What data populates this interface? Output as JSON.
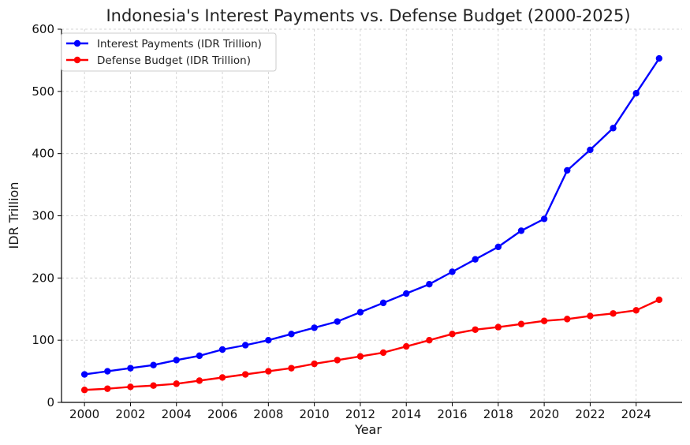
{
  "chart_data": {
    "type": "line",
    "title": "Indonesia's Interest Payments vs. Defense Budget (2000-2025)",
    "xlabel": "Year",
    "ylabel": "IDR Trillion",
    "xlim": [
      1999,
      2026
    ],
    "ylim": [
      0,
      600
    ],
    "xticks": [
      2000,
      2002,
      2004,
      2006,
      2008,
      2010,
      2012,
      2014,
      2016,
      2018,
      2020,
      2022,
      2024
    ],
    "yticks": [
      0,
      100,
      200,
      300,
      400,
      500,
      600
    ],
    "grid": true,
    "legend_position": "top-left",
    "x": [
      2000,
      2001,
      2002,
      2003,
      2004,
      2005,
      2006,
      2007,
      2008,
      2009,
      2010,
      2011,
      2012,
      2013,
      2014,
      2015,
      2016,
      2017,
      2018,
      2019,
      2020,
      2021,
      2022,
      2023,
      2024,
      2025
    ],
    "series": [
      {
        "name": "Interest Payments (IDR Trillion)",
        "color": "#0000ff",
        "values": [
          45,
          50,
          55,
          60,
          68,
          75,
          85,
          92,
          100,
          110,
          120,
          130,
          145,
          160,
          175,
          190,
          210,
          230,
          250,
          276,
          295,
          373,
          406,
          441,
          497,
          553
        ]
      },
      {
        "name": "Defense Budget (IDR Trillion)",
        "color": "#ff0000",
        "values": [
          20,
          22,
          25,
          27,
          30,
          35,
          40,
          45,
          50,
          55,
          62,
          68,
          74,
          80,
          90,
          100,
          110,
          117,
          121,
          126,
          131,
          134,
          139,
          143,
          148,
          165
        ]
      }
    ]
  }
}
